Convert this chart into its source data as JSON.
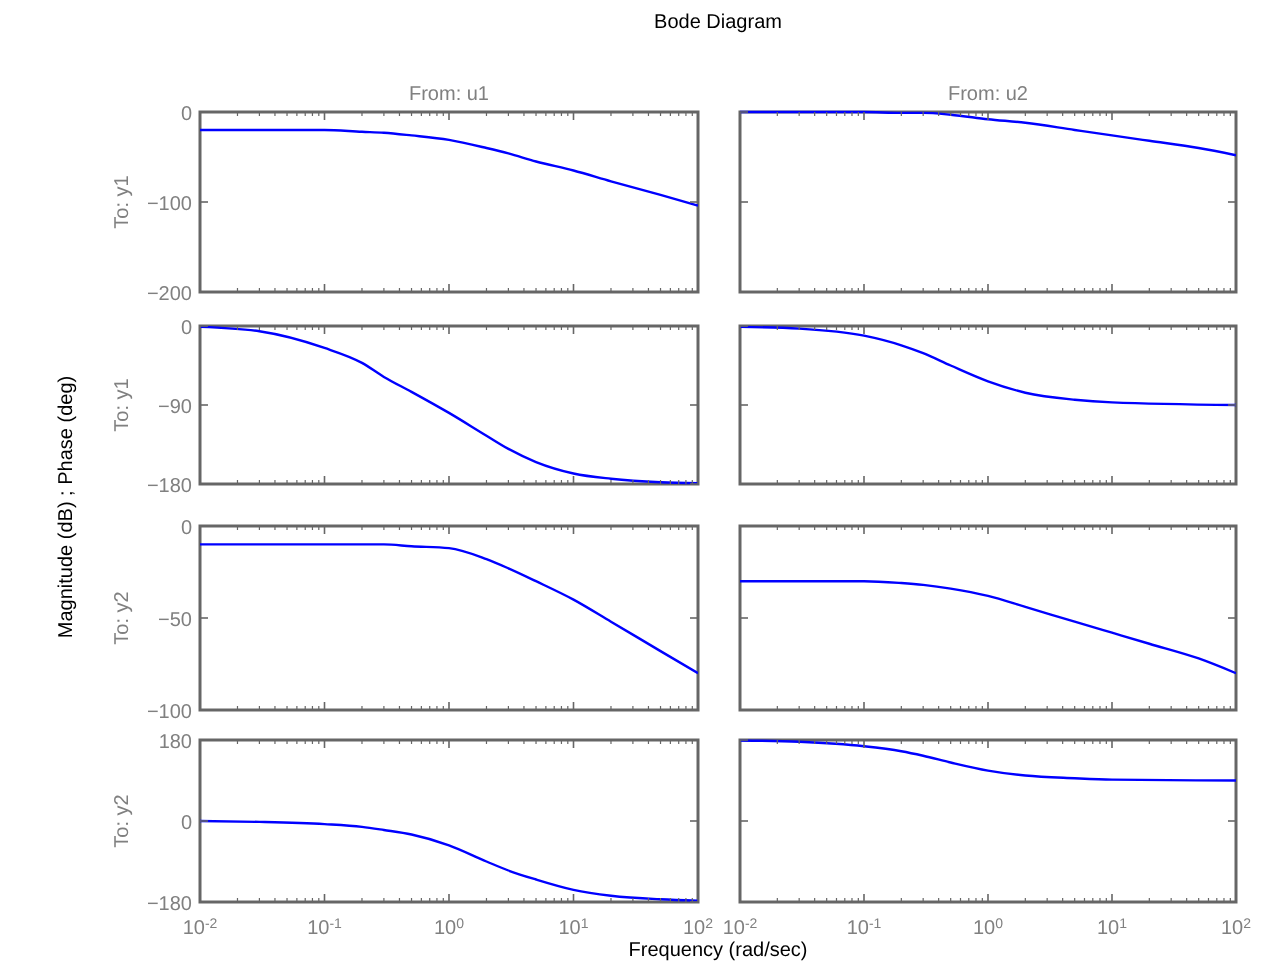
{
  "chart_data": [
    {
      "type": "line",
      "title": "From: u1",
      "ylabel": "To: y1",
      "annotations": [
        "Bode Diagram",
        "Magnitude (dB) ; Phase (deg)",
        "Frequency  (rad/sec)"
      ],
      "log": "x",
      "xlim": [
        0.01,
        100
      ],
      "xticks": [
        {
          "value": 0.01,
          "label": null
        },
        {
          "value": 0.1,
          "label": null
        },
        {
          "value": 1,
          "label": null
        },
        {
          "value": 10,
          "label": null
        },
        {
          "value": 100,
          "label": null
        }
      ],
      "ylim": [
        -200,
        0
      ],
      "yticks": [
        -200,
        -100,
        0
      ],
      "tick_labels": "y",
      "x": [
        0.01,
        0.03,
        0.1,
        0.2,
        0.3,
        0.5,
        1,
        2,
        3,
        5,
        10,
        20,
        50,
        100
      ],
      "series": [
        {
          "color": "#0000ff",
          "values": [
            -20,
            -20,
            -20,
            -22,
            -23,
            -26,
            -31,
            -40,
            -46,
            -55,
            -65,
            -77,
            -92,
            -104
          ]
        }
      ]
    },
    {
      "type": "line",
      "title": "From: u2",
      "log": "x",
      "xlim": [
        0.01,
        100
      ],
      "xticks": [
        {
          "value": 0.01,
          "label": null
        },
        {
          "value": 0.1,
          "label": null
        },
        {
          "value": 1,
          "label": null
        },
        {
          "value": 10,
          "label": null
        },
        {
          "value": 100,
          "label": null
        }
      ],
      "ylim": [
        -200,
        0
      ],
      "yticks": [
        -200,
        -100,
        0
      ],
      "tick_labels": false,
      "x": [
        0.01,
        0.1,
        0.2,
        0.3,
        0.5,
        1,
        2,
        5,
        10,
        20,
        50,
        100
      ],
      "series": [
        {
          "color": "#0000ff",
          "values": [
            0,
            0,
            -1,
            -1,
            -3,
            -8,
            -12,
            -20,
            -26,
            -32,
            -40,
            -48
          ]
        }
      ]
    },
    {
      "type": "line",
      "ylabel": "To: y1",
      "log": "x",
      "xlim": [
        0.01,
        100
      ],
      "xticks": [
        {
          "value": 0.01,
          "label": null
        },
        {
          "value": 0.1,
          "label": null
        },
        {
          "value": 1,
          "label": null
        },
        {
          "value": 10,
          "label": null
        },
        {
          "value": 100,
          "label": null
        }
      ],
      "ylim": [
        -180,
        0
      ],
      "yticks": [
        -180,
        -90,
        0
      ],
      "tick_labels": "y",
      "x": [
        0.01,
        0.03,
        0.1,
        0.2,
        0.3,
        0.5,
        1,
        2,
        3,
        5,
        10,
        20,
        50,
        100
      ],
      "series": [
        {
          "color": "#0000ff",
          "values": [
            -1,
            -6,
            -25,
            -42,
            -58,
            -75,
            -99,
            -125,
            -140,
            -155,
            -168,
            -174,
            -178,
            -179
          ]
        }
      ]
    },
    {
      "type": "line",
      "log": "x",
      "xlim": [
        0.01,
        100
      ],
      "xticks": [
        {
          "value": 0.01,
          "label": null
        },
        {
          "value": 0.1,
          "label": null
        },
        {
          "value": 1,
          "label": null
        },
        {
          "value": 10,
          "label": null
        },
        {
          "value": 100,
          "label": null
        }
      ],
      "ylim": [
        -180,
        0
      ],
      "yticks": [
        -180,
        -90,
        0
      ],
      "tick_labels": false,
      "x": [
        0.01,
        0.03,
        0.1,
        0.2,
        0.3,
        0.5,
        1,
        2,
        5,
        10,
        100
      ],
      "series": [
        {
          "color": "#0000ff",
          "values": [
            -1,
            -3,
            -11,
            -22,
            -31,
            -45,
            -63,
            -76,
            -84,
            -87,
            -90
          ]
        }
      ]
    },
    {
      "type": "line",
      "ylabel": "To: y2",
      "log": "x",
      "xlim": [
        0.01,
        100
      ],
      "xticks": [
        {
          "value": 0.01,
          "label": null
        },
        {
          "value": 0.1,
          "label": null
        },
        {
          "value": 1,
          "label": null
        },
        {
          "value": 10,
          "label": null
        },
        {
          "value": 100,
          "label": null
        }
      ],
      "ylim": [
        -100,
        0
      ],
      "yticks": [
        -100,
        -50,
        0
      ],
      "tick_labels": "y",
      "x": [
        0.01,
        0.1,
        0.3,
        0.5,
        1,
        2,
        3,
        5,
        10,
        20,
        50,
        100
      ],
      "series": [
        {
          "color": "#0000ff",
          "values": [
            -10,
            -10,
            -10,
            -11,
            -12,
            -18,
            -23,
            -30,
            -40,
            -52,
            -68,
            -80
          ]
        }
      ]
    },
    {
      "type": "line",
      "log": "x",
      "xlim": [
        0.01,
        100
      ],
      "xticks": [
        {
          "value": 0.01,
          "label": null
        },
        {
          "value": 0.1,
          "label": null
        },
        {
          "value": 1,
          "label": null
        },
        {
          "value": 10,
          "label": null
        },
        {
          "value": 100,
          "label": null
        }
      ],
      "ylim": [
        -100,
        0
      ],
      "yticks": [
        -100,
        -50,
        0
      ],
      "tick_labels": false,
      "x": [
        0.01,
        0.1,
        0.2,
        0.3,
        0.5,
        1,
        2,
        5,
        10,
        20,
        50,
        100
      ],
      "series": [
        {
          "color": "#0000ff",
          "values": [
            -30,
            -30,
            -31,
            -32,
            -34,
            -38,
            -44,
            -52,
            -58,
            -64,
            -72,
            -80
          ]
        }
      ]
    },
    {
      "type": "line",
      "ylabel": "To: y2",
      "log": "x",
      "xlim": [
        0.01,
        100
      ],
      "xticks": [
        {
          "value": 0.01,
          "label": "10$^{-2}$"
        },
        {
          "value": 0.1,
          "label": "10$^{-1}$"
        },
        {
          "value": 1,
          "label": "10$^{0}$"
        },
        {
          "value": 10,
          "label": "10$^{1}$"
        },
        {
          "value": 100,
          "label": "10$^{2}$"
        }
      ],
      "ylim": [
        -180,
        180
      ],
      "yticks": [
        -180,
        0,
        180
      ],
      "x": [
        0.01,
        0.03,
        0.1,
        0.2,
        0.3,
        0.5,
        1,
        2,
        3,
        5,
        10,
        20,
        50,
        100
      ],
      "series": [
        {
          "color": "#0000ff",
          "values": [
            0,
            -2,
            -7,
            -13,
            -20,
            -30,
            -54,
            -90,
            -110,
            -130,
            -153,
            -166,
            -174,
            -177
          ]
        }
      ]
    },
    {
      "type": "line",
      "log": "x",
      "xlim": [
        0.01,
        100
      ],
      "xticks": [
        {
          "value": 0.01,
          "label": "10$^{-2}$"
        },
        {
          "value": 0.1,
          "label": "10$^{-1}$"
        },
        {
          "value": 1,
          "label": "10$^{0}$"
        },
        {
          "value": 10,
          "label": "10$^{1}$"
        },
        {
          "value": 100,
          "label": "10$^{2}$"
        }
      ],
      "ylim": [
        -180,
        180
      ],
      "yticks": [
        -180,
        0,
        180
      ],
      "tick_labels": "x",
      "x": [
        0.01,
        0.03,
        0.1,
        0.2,
        0.3,
        0.5,
        1,
        2,
        5,
        10,
        100
      ],
      "series": [
        {
          "color": "#0000ff",
          "values": [
            179,
            176,
            166,
            155,
            145,
            130,
            112,
            101,
            95,
            92,
            90
          ]
        }
      ]
    }
  ]
}
